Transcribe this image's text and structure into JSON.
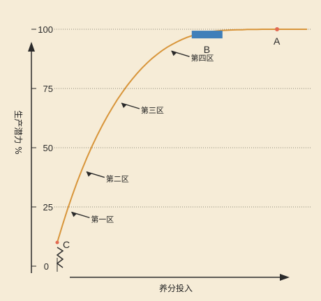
{
  "chart_data": {
    "type": "line",
    "title": "",
    "xlabel": "养分投入",
    "ylabel": "生产潜力 %",
    "ylim": [
      0,
      100
    ],
    "y_ticks": [
      "0",
      "25",
      "50",
      "75",
      "100"
    ],
    "grid": "horizontal dotted gridlines at y ticks",
    "series": [
      {
        "x": [
          0,
          2,
          4,
          6,
          8,
          10,
          12,
          14,
          16,
          18,
          20,
          22,
          24,
          26,
          28,
          30,
          32,
          34,
          36,
          38,
          40,
          42,
          44,
          46,
          48,
          50,
          52,
          54,
          56,
          58,
          60,
          62,
          64,
          66,
          68,
          70,
          72,
          74,
          76,
          78,
          80,
          82,
          84,
          86,
          88,
          90,
          92,
          94,
          96,
          98,
          100
        ],
        "y": [
          10.0,
          17.0,
          23.6,
          29.8,
          35.6,
          41.0,
          46.1,
          50.8,
          55.2,
          59.3,
          63.2,
          66.8,
          70.2,
          73.3,
          76.2,
          78.9,
          81.4,
          83.7,
          85.8,
          87.7,
          89.4,
          91.0,
          92.4,
          93.6,
          94.7,
          95.7,
          96.6,
          97.3,
          97.9,
          98.4,
          98.8,
          99.1,
          99.3,
          99.5,
          99.6,
          99.7,
          99.8,
          99.8,
          99.9,
          99.9,
          99.9,
          100,
          100,
          100,
          100,
          100,
          100,
          100,
          100,
          100,
          100
        ]
      }
    ],
    "annotations": {
      "zones": [
        {
          "label": "第一区",
          "x": 4,
          "y": 24
        },
        {
          "label": "第二区",
          "x": 10,
          "y": 41
        },
        {
          "label": "第三区",
          "x": 24,
          "y": 70
        },
        {
          "label": "第四区",
          "x": 44,
          "y": 92
        }
      ],
      "points": [
        {
          "label": "A",
          "x": 88,
          "y": 100
        },
        {
          "label": "B",
          "x": 60,
          "y": 98.8
        },
        {
          "label": "C",
          "x": 0,
          "y": 10
        }
      ]
    }
  },
  "colors": {
    "background": "#f6ecd7",
    "curve": "#d8953a",
    "axis": "#2a2a2a",
    "grid": "#8e8a7a",
    "highlight_bar": "#3f7fb9",
    "marker_A": "#e26a53"
  }
}
